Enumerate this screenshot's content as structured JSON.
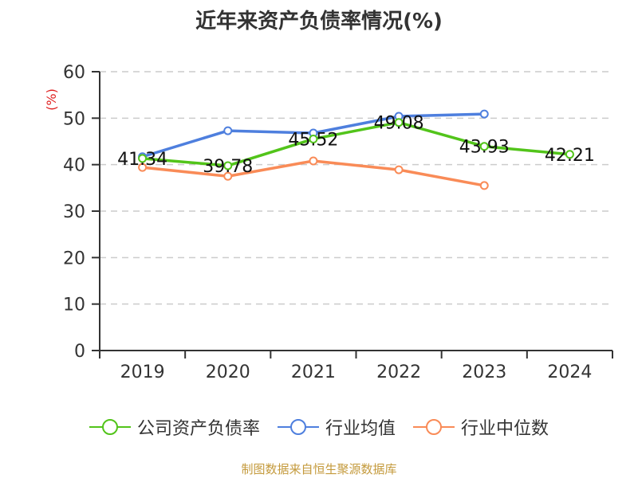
{
  "title": "近年来资产负债率情况(%)",
  "source": "制图数据来自恒生聚源数据库",
  "chart_data": {
    "type": "line",
    "title": "近年来资产负债率情况(%)",
    "xlabel": "",
    "ylabel": "(%)",
    "ylim": [
      0,
      60
    ],
    "yticks": [
      0,
      10,
      20,
      30,
      40,
      50,
      60
    ],
    "grid": true,
    "legend_position": "bottom",
    "categories": [
      "2019",
      "2020",
      "2021",
      "2022",
      "2023",
      "2024"
    ],
    "series": [
      {
        "name": "公司资产负债率",
        "color": "#52c41a",
        "values": [
          41.34,
          39.78,
          45.52,
          49.08,
          43.93,
          42.21
        ],
        "labels": [
          "41.34",
          "39.78",
          "45.52",
          "49.08",
          "43.93",
          "42.21"
        ]
      },
      {
        "name": "行业均值",
        "color": "#4e7fde",
        "values": [
          41.7,
          47.3,
          46.8,
          50.4,
          50.9,
          null
        ]
      },
      {
        "name": "行业中位数",
        "color": "#f98b57",
        "values": [
          39.4,
          37.5,
          40.8,
          38.9,
          35.5,
          null
        ]
      }
    ]
  }
}
